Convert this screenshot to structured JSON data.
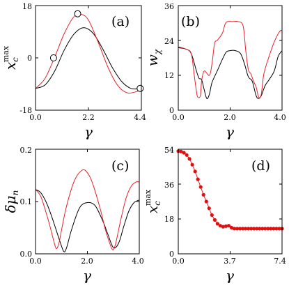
{
  "colors": {
    "black_series": "#000000",
    "red_series": "#e8202a",
    "marker": "#dd1111"
  },
  "chart_data": [
    {
      "panel": "(a)",
      "type": "line",
      "ylabel_main": "x",
      "ylabel_sub": "c",
      "ylabel_sup": "max",
      "xlabel": "γ",
      "xlim": [
        0,
        4.4
      ],
      "ylim": [
        -18,
        18
      ],
      "xticks": [
        "0.0",
        "2.2",
        "4.4"
      ],
      "yticks": [
        "-18",
        "0",
        "18"
      ],
      "series": [
        {
          "color": "black",
          "x": [
            0,
            0.4,
            0.8,
            1.2,
            1.6,
            2.0,
            2.4,
            2.8,
            3.2,
            3.6,
            4.0,
            4.4
          ],
          "y": [
            -10.5,
            -9.3,
            -4.5,
            2.8,
            8.2,
            10.4,
            8.4,
            3.0,
            -3.4,
            -8.3,
            -10.6,
            -10.4
          ]
        },
        {
          "color": "red",
          "x": [
            0,
            0.4,
            0.8,
            1.2,
            1.6,
            1.9,
            2.2,
            2.6,
            3.0,
            3.4,
            3.8,
            4.2,
            4.4
          ],
          "y": [
            -10.5,
            -7.0,
            0.3,
            8.5,
            14.2,
            15.0,
            13.0,
            5.5,
            -3.0,
            -9.3,
            -12.0,
            -11.6,
            -10.8
          ]
        }
      ],
      "markers": [
        {
          "x": 0.75,
          "y": 0
        },
        {
          "x": 1.75,
          "y": 15.2
        },
        {
          "x": 4.35,
          "y": -10.5
        }
      ]
    },
    {
      "panel": "(b)",
      "type": "line",
      "ylabel_main": "w",
      "ylabel_sub": "χ",
      "xlabel": "γ",
      "xlim": [
        0,
        4.0
      ],
      "ylim": [
        0,
        36
      ],
      "xticks": [
        "0.0",
        "2.0",
        "4.0"
      ],
      "yticks": [
        "0",
        "12",
        "24",
        "36"
      ],
      "series": [
        {
          "color": "black",
          "x": [
            0,
            0.3,
            0.5,
            0.7,
            0.8,
            0.9,
            1.0,
            1.1,
            1.2,
            1.3,
            1.5,
            1.7,
            1.85,
            2.0,
            2.2,
            2.4,
            2.55,
            2.7,
            2.85,
            3.0,
            3.1,
            3.2,
            3.35,
            3.5,
            3.7,
            3.85,
            4.0
          ],
          "y": [
            21.5,
            21.0,
            19.5,
            13.5,
            11.0,
            10.5,
            7.0,
            4.0,
            5.5,
            9.5,
            13.5,
            17.5,
            20.0,
            20.5,
            20.5,
            19.5,
            16.0,
            11.5,
            10.0,
            5.0,
            4.0,
            5.0,
            8.5,
            10.5,
            13.5,
            18.5,
            20.5
          ]
        },
        {
          "color": "red",
          "x": [
            0,
            0.3,
            0.5,
            0.6,
            0.7,
            0.75,
            0.85,
            0.9,
            1.0,
            1.2,
            1.3,
            1.4,
            1.5,
            1.7,
            1.8,
            1.9,
            2.1,
            2.3,
            2.5,
            2.6,
            2.7,
            2.8,
            2.9,
            3.0,
            3.1,
            3.2,
            3.3,
            3.5,
            3.7,
            3.9,
            4.0
          ],
          "y": [
            21.8,
            21.0,
            19.5,
            13.0,
            6.5,
            4.5,
            5.0,
            10.0,
            13.5,
            12.0,
            16.0,
            23.0,
            24.0,
            26.5,
            29.5,
            30.5,
            30.5,
            30.5,
            29.0,
            20.5,
            14.0,
            12.5,
            10.0,
            8.0,
            4.5,
            5.5,
            12.5,
            18.5,
            23.5,
            27.0,
            27.5
          ]
        }
      ]
    },
    {
      "panel": "(c)",
      "type": "line",
      "ylabel_main": "δμ",
      "ylabel_sub": "n",
      "xlabel": "γ",
      "xlim": [
        0,
        4.0
      ],
      "ylim": [
        0,
        0.2
      ],
      "xticks": [
        "0.0",
        "2.0",
        "4.0"
      ],
      "yticks": [
        "0.0",
        "0.1",
        "0.2"
      ],
      "series": [
        {
          "color": "black",
          "x": [
            0,
            0.2,
            0.4,
            0.6,
            0.8,
            1.0,
            1.1,
            1.2,
            1.4,
            1.7,
            2.0,
            2.3,
            2.6,
            2.8,
            3.0,
            3.2,
            3.4,
            3.6,
            3.8,
            4.0
          ],
          "y": [
            0.123,
            0.117,
            0.1,
            0.075,
            0.045,
            0.015,
            0.004,
            0.012,
            0.048,
            0.088,
            0.098,
            0.092,
            0.062,
            0.036,
            0.012,
            0.02,
            0.052,
            0.082,
            0.098,
            0.103
          ]
        },
        {
          "color": "red",
          "x": [
            0,
            0.2,
            0.4,
            0.6,
            0.7,
            0.8,
            0.9,
            1.0,
            1.2,
            1.5,
            1.8,
            2.0,
            2.2,
            2.5,
            2.7,
            2.9,
            3.0,
            3.1,
            3.3,
            3.5,
            3.7,
            3.9,
            4.0
          ],
          "y": [
            0.123,
            0.11,
            0.08,
            0.045,
            0.025,
            0.01,
            0.02,
            0.045,
            0.092,
            0.14,
            0.16,
            0.155,
            0.135,
            0.085,
            0.045,
            0.015,
            0.008,
            0.022,
            0.068,
            0.108,
            0.13,
            0.138,
            0.137
          ]
        }
      ]
    },
    {
      "panel": "(d)",
      "type": "scatter",
      "ylabel_main": "x",
      "ylabel_sub": "c",
      "ylabel_sup": "max",
      "xlabel": "γ",
      "xlim": [
        0,
        7.4
      ],
      "ylim": [
        0,
        54
      ],
      "xticks": [
        "0.0",
        "3.7",
        "7.4"
      ],
      "yticks": [
        "0",
        "18",
        "36",
        "54"
      ],
      "series": [
        {
          "color": "red",
          "x": [
            0,
            0.2,
            0.4,
            0.6,
            0.8,
            1.0,
            1.2,
            1.4,
            1.6,
            1.8,
            2.0,
            2.2,
            2.4,
            2.6,
            2.8,
            3.0,
            3.2,
            3.4,
            3.6,
            3.8,
            4.0,
            4.2,
            4.4,
            4.6,
            4.8,
            5.0,
            5.2,
            5.4,
            5.6,
            5.8,
            6.0,
            6.2,
            6.4,
            6.6,
            6.8,
            7.0,
            7.2,
            7.4
          ],
          "y": [
            53.0,
            52.8,
            52.2,
            51.0,
            49.0,
            46.0,
            42.5,
            38.5,
            34.5,
            30.5,
            27.0,
            23.5,
            20.0,
            17.5,
            15.5,
            14.5,
            14.0,
            14.3,
            14.5,
            13.5,
            13.0,
            13.0,
            13.0,
            13.0,
            13.0,
            13.0,
            13.0,
            13.0,
            13.0,
            13.0,
            13.0,
            13.0,
            13.0,
            13.0,
            13.0,
            13.0,
            13.0,
            13.0
          ]
        }
      ]
    }
  ]
}
